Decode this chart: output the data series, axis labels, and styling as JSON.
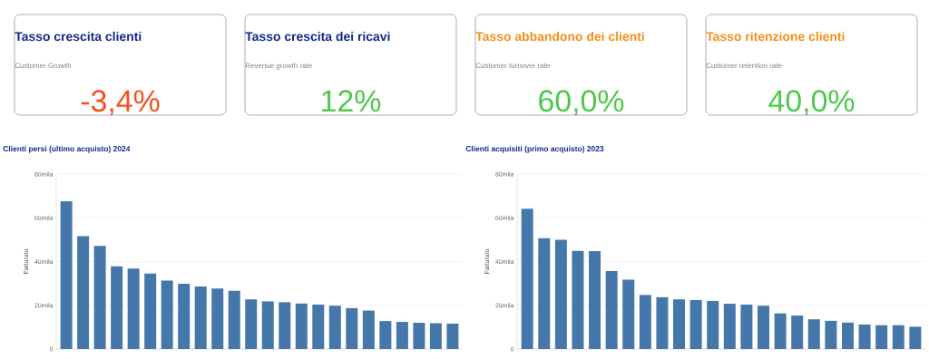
{
  "chart_data": [
    {
      "type": "other",
      "title": "Tasso crescita clienti",
      "subtitle": "Customer Growth",
      "annotations": [
        "-3,4%"
      ],
      "color": "#f4511e"
    },
    {
      "type": "other",
      "title": "Tasso crescita dei ricavi",
      "subtitle": "Revenue growth rate",
      "annotations": [
        "12%"
      ],
      "color": "#4cc94c"
    },
    {
      "type": "other",
      "title": "Tasso abbandono dei clienti",
      "subtitle": "Customer turnover rate",
      "annotations": [
        "60,0%"
      ],
      "color": "#4cc94c"
    },
    {
      "type": "other",
      "title": "Tasso ritenzione clienti",
      "subtitle": "Customer retention rate",
      "annotations": [
        "40,0%"
      ],
      "color": "#4cc94c"
    },
    {
      "type": "bar",
      "title": "Clienti persi (ultimo acquisto) 2024",
      "ylabel": "Fatturato",
      "categories": [
        null,
        null,
        null,
        null,
        null,
        null,
        null,
        null,
        null,
        null,
        null,
        null,
        null,
        null,
        null,
        null,
        null,
        null,
        null,
        null,
        null,
        null,
        null,
        null
      ],
      "values": [
        67.6,
        51.6,
        47.2,
        37.8,
        36.8,
        34.5,
        31.3,
        29.8,
        28.6,
        27.7,
        26.6,
        22.7,
        21.8,
        21.4,
        20.8,
        20.3,
        19.8,
        18.7,
        17.6,
        12.8,
        12.4,
        12.0,
        11.8,
        11.6
      ],
      "color": "#4677aa",
      "ylim": [
        0,
        80
      ],
      "yticks": [
        0,
        {
          "value": 20,
          "label": "20mila"
        },
        {
          "value": 40,
          "label": "40mila"
        },
        {
          "value": 60,
          "label": "60mila"
        },
        {
          "value": 80,
          "label": "80mila"
        }
      ],
      "grid": "y",
      "tick_labels": "y"
    },
    {
      "type": "bar",
      "title": "Clienti acquisiti (primo acquisto) 2023",
      "ylabel": "Fatturato",
      "categories": [
        null,
        null,
        null,
        null,
        null,
        null,
        null,
        null,
        null,
        null,
        null,
        null,
        null,
        null,
        null,
        null,
        null,
        null,
        null,
        null,
        null,
        null,
        null,
        null
      ],
      "values": [
        64.2,
        50.7,
        49.9,
        44.9,
        44.8,
        35.6,
        31.7,
        24.7,
        23.7,
        22.7,
        22.4,
        22.0,
        20.7,
        20.3,
        19.8,
        16.3,
        15.3,
        13.6,
        12.9,
        12.1,
        11.2,
        10.9,
        10.9,
        10.2
      ],
      "color": "#4677aa",
      "ylim": [
        0,
        80
      ],
      "yticks": [
        0,
        {
          "value": 20,
          "label": "20mila"
        },
        {
          "value": 40,
          "label": "40mila"
        },
        {
          "value": 60,
          "label": "60mila"
        },
        {
          "value": 80,
          "label": "80mila"
        }
      ],
      "grid": "y",
      "tick_labels": "y"
    }
  ]
}
